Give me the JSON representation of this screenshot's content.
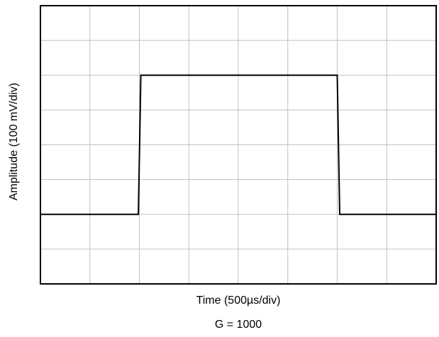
{
  "chart_data": {
    "type": "line",
    "title": "",
    "xlabel": "Time (500µs/div)",
    "ylabel": "Amplitude (100 mV/div)",
    "annotation": "G = 1000",
    "x_divisions": 8,
    "y_divisions": 8,
    "xlim": [
      0,
      8
    ],
    "ylim": [
      0,
      8
    ],
    "grid": true,
    "legend": "none",
    "series": [
      {
        "x": [
          0,
          1.98,
          2.03,
          6.0,
          6.05,
          8
        ],
        "y": [
          2.0,
          2.0,
          6.0,
          6.0,
          2.0,
          2.0
        ]
      }
    ],
    "colors": {
      "trace": "#000000",
      "grid": "#c0c0c0",
      "frame": "#000000"
    }
  }
}
